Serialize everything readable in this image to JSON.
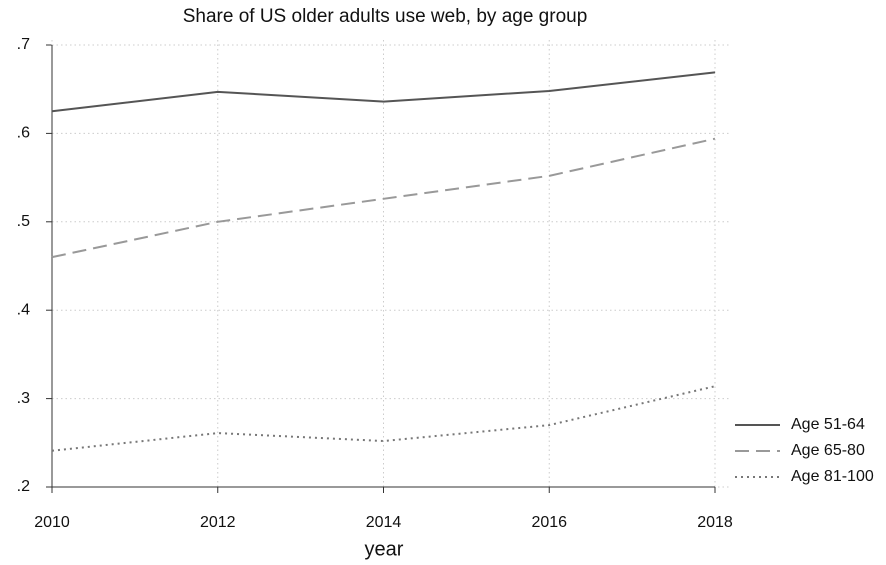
{
  "chart_data": {
    "type": "line",
    "title": "Share of US older adults use web, by age group",
    "x_label": "year",
    "x": [
      2010,
      2012,
      2014,
      2016,
      2018
    ],
    "series": [
      {
        "name": "Age 51-64",
        "color": "#555555",
        "dash": "solid",
        "values": [
          0.625,
          0.647,
          0.636,
          0.648,
          0.669
        ]
      },
      {
        "name": "Age 65-80",
        "color": "#999999",
        "dash": "dashed",
        "values": [
          0.46,
          0.5,
          0.526,
          0.552,
          0.594
        ]
      },
      {
        "name": "Age 81-100",
        "color": "#777777",
        "dash": "dotted",
        "values": [
          0.241,
          0.261,
          0.252,
          0.27,
          0.314
        ]
      }
    ],
    "xlim": [
      2010,
      2018
    ],
    "xticks": [
      2010,
      2012,
      2014,
      2016,
      2018
    ],
    "ylim": [
      0.2,
      0.7
    ],
    "yticks": [
      {
        "value": 0.2,
        "label": ".2"
      },
      {
        "value": 0.3,
        "label": ".3"
      },
      {
        "value": 0.4,
        "label": ".4"
      },
      {
        "value": 0.5,
        "label": ".5"
      },
      {
        "value": 0.6,
        "label": ".6"
      },
      {
        "value": 0.7,
        "label": ".7"
      }
    ],
    "grid": true,
    "legend": "right"
  }
}
